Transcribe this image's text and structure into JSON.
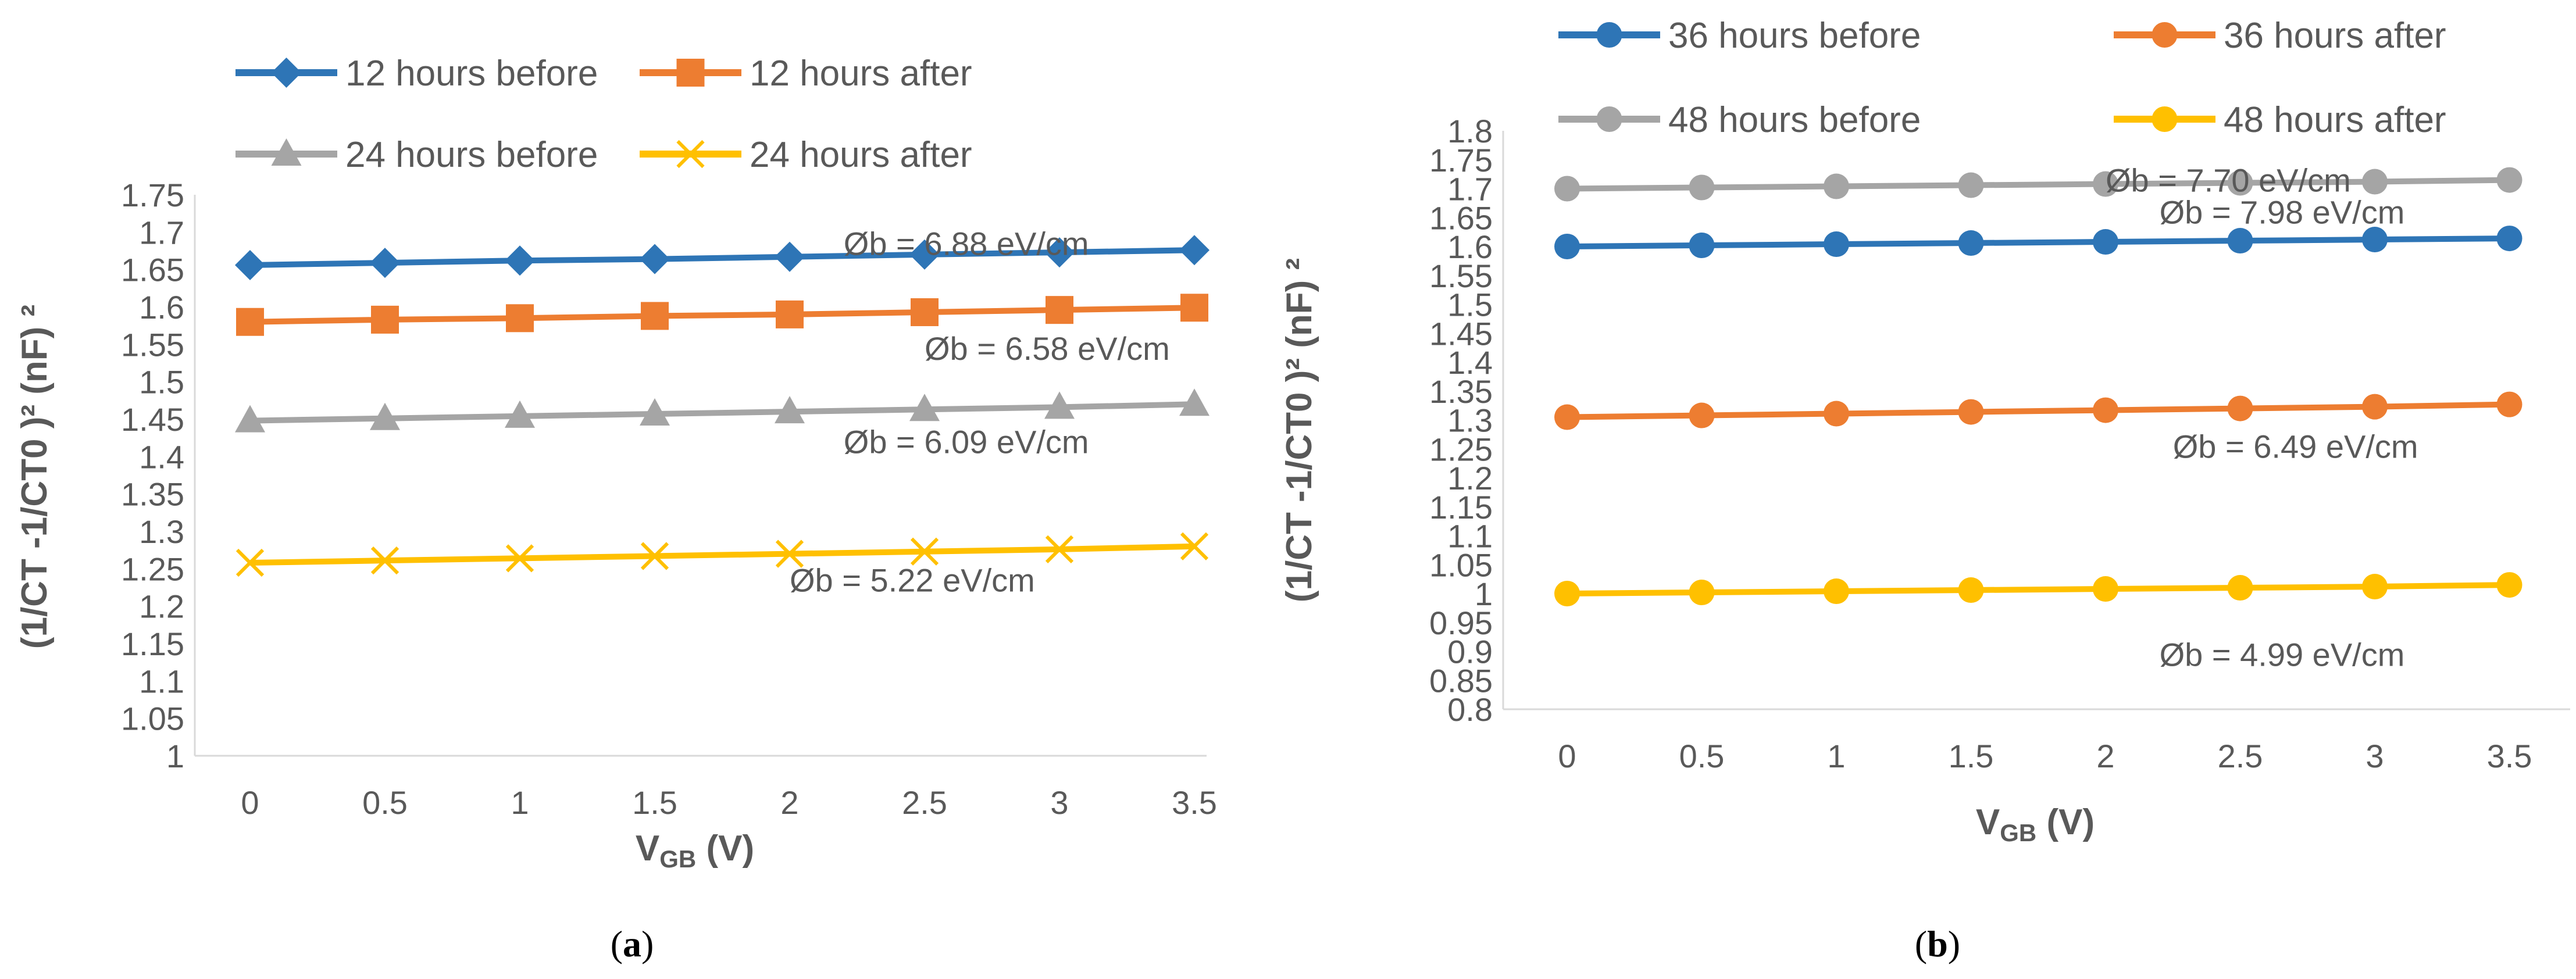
{
  "chart_data": [
    {
      "type": "line",
      "panel": "a",
      "caption_letter": "a",
      "x": [
        0,
        0.5,
        1,
        1.5,
        2,
        2.5,
        3,
        3.5
      ],
      "x_tick_labels": [
        "0",
        "0.5",
        "1",
        "1.5",
        "2",
        "2.5",
        "3",
        "3.5"
      ],
      "ylim": [
        1,
        1.75
      ],
      "y_ticks": [
        1,
        1.05,
        1.1,
        1.15,
        1.2,
        1.25,
        1.3,
        1.35,
        1.4,
        1.45,
        1.5,
        1.55,
        1.6,
        1.65,
        1.7,
        1.75
      ],
      "y_tick_labels": [
        "1",
        "1.05",
        "1.1",
        "1.15",
        "1.2",
        "1.25",
        "1.3",
        "1.35",
        "1.4",
        "1.45",
        "1.5",
        "1.55",
        "1.6",
        "1.65",
        "1.7",
        "1.75"
      ],
      "ylabel": "(1/CT -1/CT0 )² (nF) ²",
      "xlabel_main": "V",
      "xlabel_sub": "GB",
      "xlabel_unit": " (V)",
      "series": [
        {
          "name": "12 hours before",
          "color": "#2e75b6",
          "marker": "diamond",
          "values": [
            1.656,
            1.659,
            1.662,
            1.664,
            1.667,
            1.67,
            1.673,
            1.676
          ]
        },
        {
          "name": "12 hours after",
          "color": "#ed7d31",
          "marker": "square",
          "values": [
            1.58,
            1.583,
            1.585,
            1.588,
            1.59,
            1.593,
            1.596,
            1.599
          ]
        },
        {
          "name": "24 hours before",
          "color": "#a5a5a5",
          "marker": "triangle",
          "values": [
            1.448,
            1.451,
            1.454,
            1.457,
            1.46,
            1.463,
            1.466,
            1.47
          ]
        },
        {
          "name": "24 hours after",
          "color": "#ffc000",
          "marker": "x",
          "values": [
            1.258,
            1.261,
            1.264,
            1.267,
            1.27,
            1.273,
            1.276,
            1.28
          ]
        }
      ],
      "annotations": [
        {
          "text": "Øb  = 6.88 eV/cm",
          "x": 2.2,
          "y": 1.685
        },
        {
          "text": "Øb  = 6.58 eV/cm",
          "x": 2.5,
          "y": 1.545
        },
        {
          "text": "Øb  = 6.09 eV/cm",
          "x": 2.2,
          "y": 1.42
        },
        {
          "text": "Øb  = 5.22 eV/cm",
          "x": 2.0,
          "y": 1.235
        }
      ]
    },
    {
      "type": "line",
      "panel": "b",
      "caption_letter": "b",
      "x": [
        0,
        0.5,
        1,
        1.5,
        2,
        2.5,
        3,
        3.5
      ],
      "x_tick_labels": [
        "0",
        "0.5",
        "1",
        "1.5",
        "2",
        "2.5",
        "3",
        "3.5"
      ],
      "ylim": [
        0.8,
        1.8
      ],
      "y_ticks": [
        0.8,
        0.85,
        0.9,
        0.95,
        1,
        1.05,
        1.1,
        1.15,
        1.2,
        1.25,
        1.3,
        1.35,
        1.4,
        1.45,
        1.5,
        1.55,
        1.6,
        1.65,
        1.7,
        1.75,
        1.8
      ],
      "y_tick_labels": [
        "0.8",
        "0.85",
        "0.9",
        "0.95",
        "1",
        "1.05",
        "1.1",
        "1.15",
        "1.2",
        "1.25",
        "1.3",
        "1.35",
        "1.4",
        "1.45",
        "1.5",
        "1.55",
        "1.6",
        "1.65",
        "1.7",
        "1.75",
        "1.8"
      ],
      "ylabel": "(1/CT -1/CT0 )² (nF) ²",
      "xlabel_main": "V",
      "xlabel_sub": "GB",
      "xlabel_unit": " (V)",
      "series": [
        {
          "name": "36 hours before",
          "color": "#2e75b6",
          "marker": "circle",
          "values": [
            1.6,
            1.602,
            1.604,
            1.606,
            1.608,
            1.61,
            1.612,
            1.614
          ]
        },
        {
          "name": "36 hours after",
          "color": "#ed7d31",
          "marker": "circle",
          "values": [
            1.305,
            1.308,
            1.311,
            1.314,
            1.317,
            1.32,
            1.323,
            1.327
          ]
        },
        {
          "name": "48 hours before",
          "color": "#a5a5a5",
          "marker": "circle",
          "values": [
            1.7,
            1.702,
            1.704,
            1.706,
            1.708,
            1.71,
            1.712,
            1.715
          ]
        },
        {
          "name": "48 hours after",
          "color": "#ffc000",
          "marker": "circle",
          "values": [
            1.0,
            1.002,
            1.004,
            1.006,
            1.008,
            1.01,
            1.012,
            1.015
          ]
        }
      ],
      "annotations": [
        {
          "text": "Øb  = 7.70 eV/cm",
          "x": 2.0,
          "y": 1.715
        },
        {
          "text": "Øb  = 7.98 eV/cm",
          "x": 2.2,
          "y": 1.66
        },
        {
          "text": "Øb  = 6.49 eV/cm",
          "x": 2.25,
          "y": 1.255
        },
        {
          "text": "Øb  = 4.99 eV/cm",
          "x": 2.2,
          "y": 0.895
        }
      ]
    }
  ]
}
